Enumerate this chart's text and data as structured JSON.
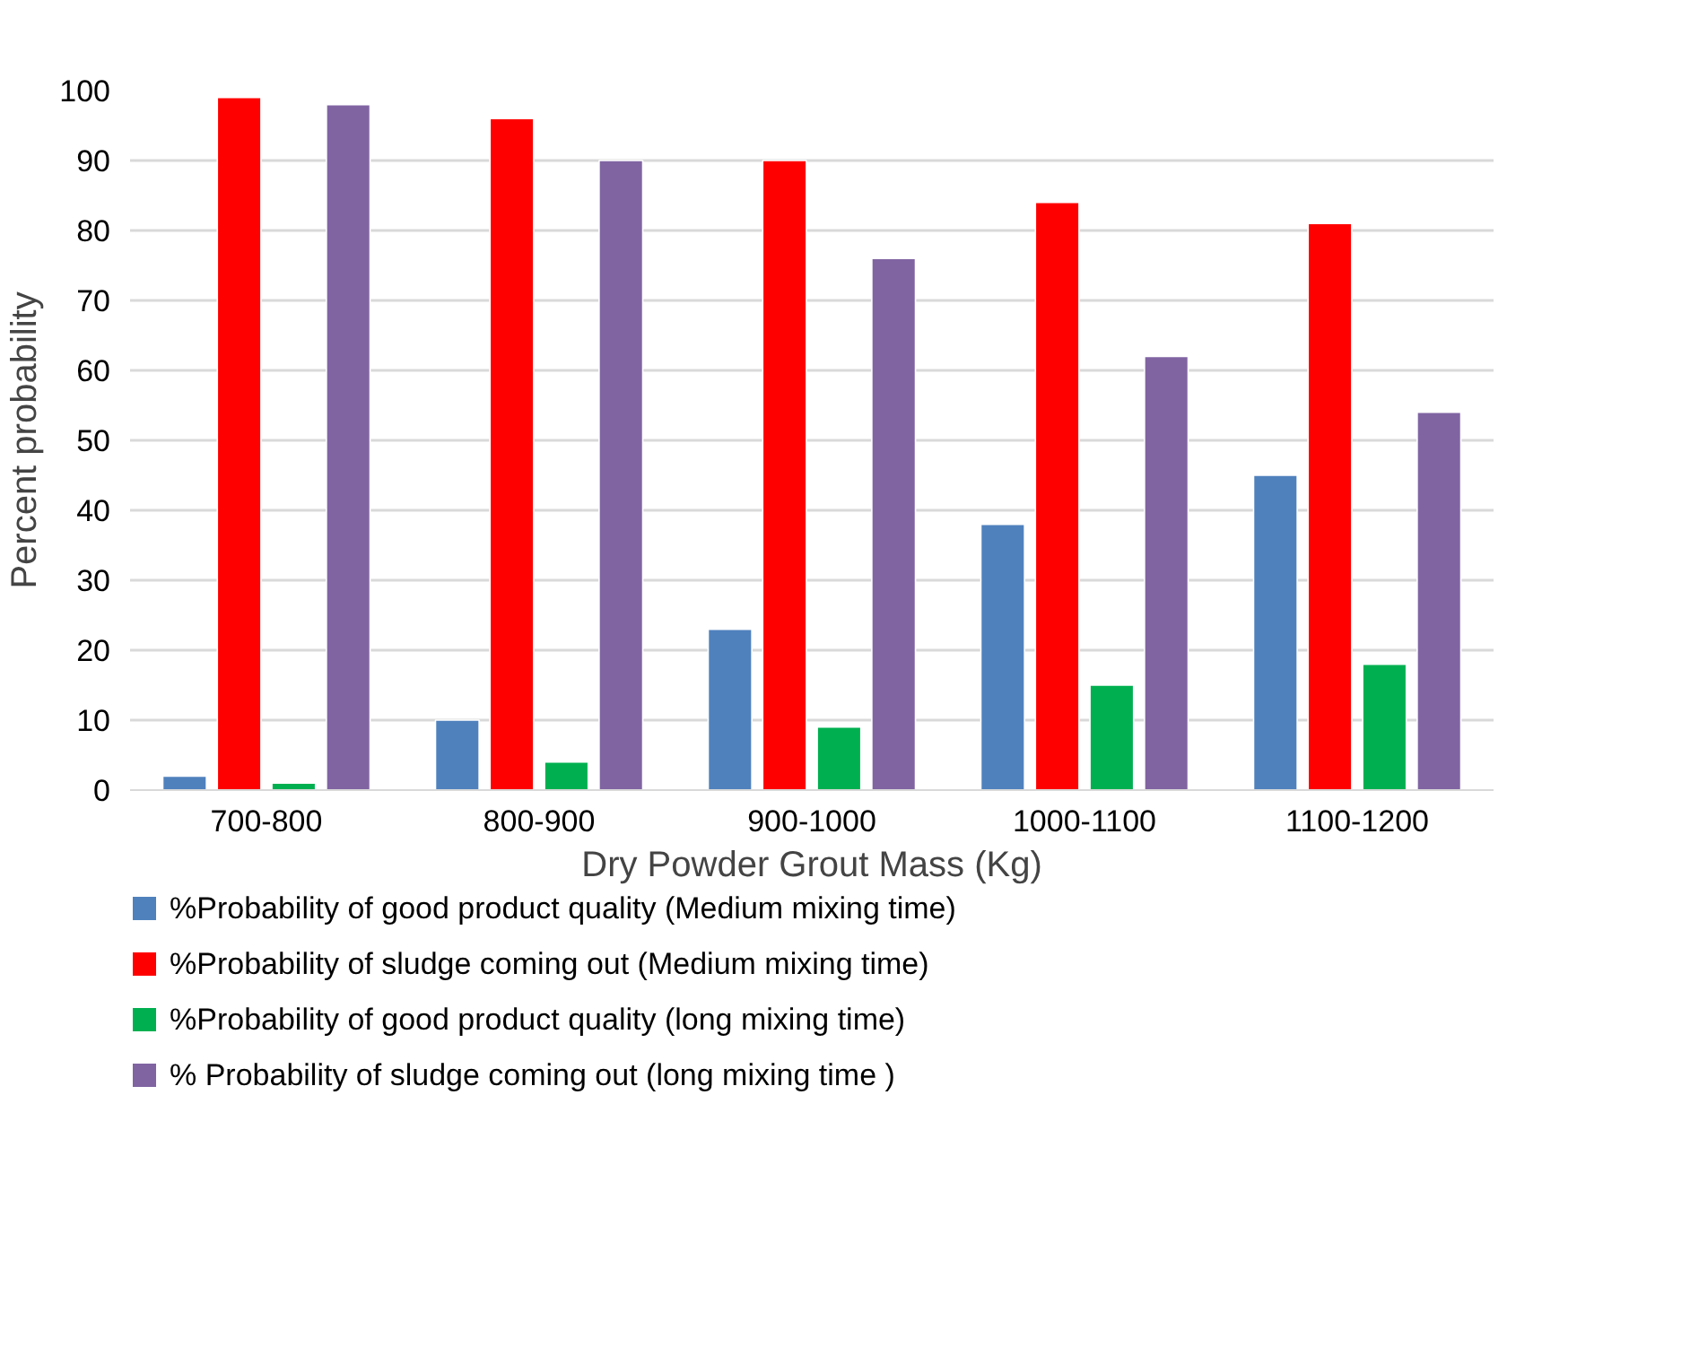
{
  "chart_data": {
    "type": "bar",
    "xlabel": "Dry Powder Grout Mass (Kg)",
    "ylabel": "Percent probability",
    "categories": [
      "700-800",
      "800-900",
      "900-1000",
      "1000-1100",
      "1100-1200"
    ],
    "series": [
      {
        "name": "%Probability of good product quality (Medium mixing time)",
        "color": "#4f81bd",
        "values": [
          2,
          10,
          23,
          38,
          45
        ]
      },
      {
        "name": "%Probability of sludge coming out (Medium mixing time)",
        "color": "#ff0000",
        "values": [
          99,
          96,
          90,
          84,
          81
        ]
      },
      {
        "name": "%Probability of good product quality (long mixing time)",
        "color": "#00b050",
        "values": [
          1,
          4,
          9,
          15,
          18
        ]
      },
      {
        "name": "% Probability of sludge coming out (long mixing time )",
        "color": "#8064a2",
        "values": [
          98,
          90,
          76,
          62,
          54
        ]
      }
    ],
    "ylim": [
      0,
      100
    ],
    "yticks": [
      0,
      10,
      20,
      30,
      40,
      50,
      60,
      70,
      80,
      90,
      100
    ],
    "grid": "y",
    "legend": "bottom"
  }
}
